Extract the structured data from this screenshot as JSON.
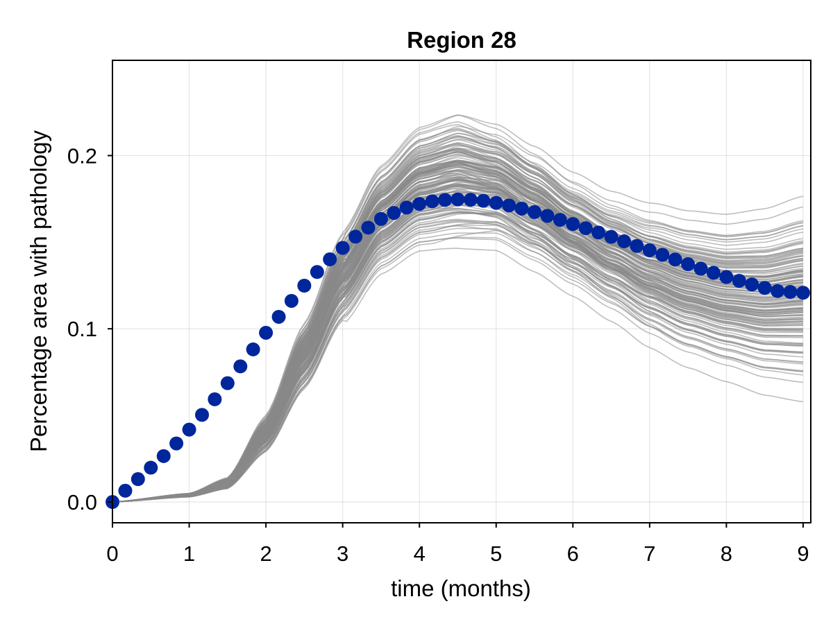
{
  "chart_data": {
    "type": "line",
    "title": "Region 28",
    "xlabel": "time (months)",
    "ylabel": "Percentage area with pathology",
    "xlim": [
      0,
      9.1
    ],
    "ylim": [
      -0.012,
      0.255
    ],
    "grid": true,
    "legend": "none",
    "x_ticks": [
      0,
      1,
      2,
      3,
      4,
      5,
      6,
      7,
      8,
      9
    ],
    "x_tick_labels": [
      "0",
      "1",
      "2",
      "3",
      "4",
      "5",
      "6",
      "7",
      "8",
      "9"
    ],
    "y_ticks": [
      0.0,
      0.1,
      0.2
    ],
    "y_tick_labels": [
      "0.0",
      "0.1",
      "0.2"
    ],
    "series": [
      {
        "kind": "ensemble-lines",
        "color": "#888888",
        "count": 150,
        "x": [
          0,
          1,
          1.5,
          2,
          2.5,
          3,
          3.5,
          4,
          4.5,
          5,
          5.5,
          6,
          6.5,
          7,
          7.5,
          8,
          8.5,
          9
        ],
        "mean_values": [
          0.0,
          0.004,
          0.011,
          0.04,
          0.085,
          0.131,
          0.165,
          0.183,
          0.188,
          0.184,
          0.171,
          0.156,
          0.143,
          0.132,
          0.124,
          0.119,
          0.117,
          0.119
        ],
        "spread_values": [
          0.0,
          0.0005,
          0.0015,
          0.005,
          0.009,
          0.012,
          0.014,
          0.016,
          0.017,
          0.015,
          0.014,
          0.013,
          0.013,
          0.014,
          0.015,
          0.016,
          0.018,
          0.02
        ]
      },
      {
        "kind": "points-with-errorbars",
        "color": "#00269c",
        "errorbar_color": "#0a4cb0",
        "x": [
          0,
          0.167,
          0.333,
          0.5,
          0.667,
          0.833,
          1.0,
          1.167,
          1.333,
          1.5,
          1.667,
          1.833,
          2.0,
          2.167,
          2.333,
          2.5,
          2.667,
          2.833,
          3.0,
          3.167,
          3.333,
          3.5,
          3.667,
          3.833,
          4.0,
          4.167,
          4.333,
          4.5,
          4.667,
          4.833,
          5.0,
          5.167,
          5.333,
          5.5,
          5.667,
          5.833,
          6.0,
          6.167,
          6.333,
          6.5,
          6.667,
          6.833,
          7.0,
          7.167,
          7.333,
          7.5,
          7.667,
          7.833,
          8.0,
          8.167,
          8.333,
          8.5,
          8.667,
          8.833,
          9.0
        ],
        "values": [
          0.0,
          0.0065,
          0.0132,
          0.0198,
          0.0265,
          0.0338,
          0.0418,
          0.0503,
          0.0593,
          0.0686,
          0.0783,
          0.0881,
          0.0977,
          0.1069,
          0.1161,
          0.1249,
          0.1328,
          0.1401,
          0.1467,
          0.1532,
          0.1584,
          0.1634,
          0.1669,
          0.17,
          0.1721,
          0.1736,
          0.1744,
          0.1747,
          0.1745,
          0.1739,
          0.1727,
          0.1712,
          0.1694,
          0.1674,
          0.1652,
          0.1629,
          0.1605,
          0.1581,
          0.1556,
          0.1531,
          0.1505,
          0.1478,
          0.1453,
          0.1427,
          0.14,
          0.1373,
          0.1347,
          0.1323,
          0.1299,
          0.1277,
          0.1256,
          0.1236,
          0.1218,
          0.1213,
          0.1208
        ],
        "xerr": 0.08
      }
    ]
  }
}
